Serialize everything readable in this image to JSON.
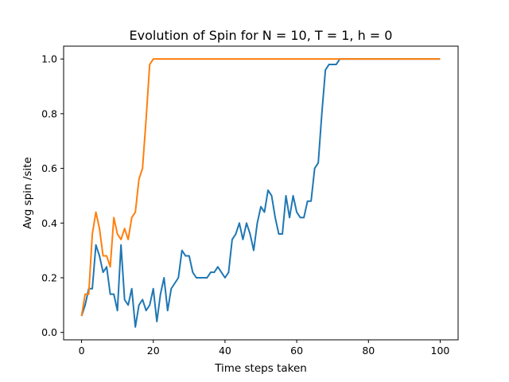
{
  "chart_data": {
    "type": "line",
    "title": "Evolution of Spin for N = 10, T = 1, h = 0",
    "xlabel": "Time steps taken",
    "ylabel": "Avg spin /site",
    "xlim": [
      -5,
      105
    ],
    "ylim": [
      -0.027,
      1.047
    ],
    "xticks": [
      0,
      20,
      40,
      60,
      80,
      100
    ],
    "yticks": [
      0.0,
      0.2,
      0.4,
      0.6,
      0.8,
      1.0
    ],
    "xtick_labels": [
      "0",
      "20",
      "40",
      "60",
      "80",
      "100"
    ],
    "ytick_labels": [
      "0.0",
      "0.2",
      "0.4",
      "0.6",
      "0.8",
      "1.0"
    ],
    "grid": false,
    "legend": "none",
    "series": [
      {
        "color": "#1f77b4",
        "x": [
          0,
          1,
          2,
          3,
          4,
          5,
          6,
          7,
          8,
          9,
          10,
          11,
          12,
          13,
          14,
          15,
          16,
          17,
          18,
          19,
          20,
          21,
          22,
          23,
          24,
          25,
          26,
          27,
          28,
          29,
          30,
          31,
          32,
          33,
          34,
          35,
          36,
          37,
          38,
          39,
          40,
          41,
          42,
          43,
          44,
          45,
          46,
          47,
          48,
          49,
          50,
          51,
          52,
          53,
          54,
          55,
          56,
          57,
          58,
          59,
          60,
          61,
          62,
          63,
          64,
          65,
          66,
          67,
          68,
          69,
          70,
          71,
          72,
          73,
          74,
          75,
          76,
          77,
          78,
          79,
          80,
          81,
          82,
          83,
          84,
          85,
          86,
          87,
          88,
          89,
          90,
          91,
          92,
          93,
          94,
          95,
          96,
          97,
          98,
          99,
          100
        ],
        "values": [
          0.06,
          0.1,
          0.16,
          0.16,
          0.32,
          0.28,
          0.22,
          0.24,
          0.14,
          0.14,
          0.08,
          0.32,
          0.12,
          0.1,
          0.16,
          0.02,
          0.1,
          0.12,
          0.08,
          0.1,
          0.16,
          0.04,
          0.14,
          0.2,
          0.08,
          0.16,
          0.18,
          0.2,
          0.3,
          0.28,
          0.28,
          0.22,
          0.2,
          0.2,
          0.2,
          0.2,
          0.22,
          0.22,
          0.24,
          0.22,
          0.2,
          0.22,
          0.34,
          0.36,
          0.4,
          0.34,
          0.4,
          0.36,
          0.3,
          0.4,
          0.46,
          0.44,
          0.52,
          0.5,
          0.42,
          0.36,
          0.36,
          0.5,
          0.42,
          0.5,
          0.44,
          0.42,
          0.42,
          0.48,
          0.48,
          0.6,
          0.62,
          0.8,
          0.96,
          0.98,
          0.98,
          0.98,
          1.0,
          1.0,
          1.0,
          1.0,
          1.0,
          1.0,
          1.0,
          1.0,
          1.0,
          1.0,
          1.0,
          1.0,
          1.0,
          1.0,
          1.0,
          1.0,
          1.0,
          1.0,
          1.0,
          1.0,
          1.0,
          1.0,
          1.0,
          1.0,
          1.0,
          1.0,
          1.0,
          1.0,
          1.0
        ]
      },
      {
        "color": "#ff7f0e",
        "x": [
          0,
          1,
          2,
          3,
          4,
          5,
          6,
          7,
          8,
          9,
          10,
          11,
          12,
          13,
          14,
          15,
          16,
          17,
          18,
          19,
          20,
          21,
          22,
          23,
          24,
          25,
          26,
          27,
          28,
          29,
          30,
          31,
          32,
          33,
          34,
          35,
          36,
          37,
          38,
          39,
          40,
          41,
          42,
          43,
          44,
          45,
          46,
          47,
          48,
          49,
          50,
          51,
          52,
          53,
          54,
          55,
          56,
          57,
          58,
          59,
          60,
          61,
          62,
          63,
          64,
          65,
          66,
          67,
          68,
          69,
          70,
          71,
          72,
          73,
          74,
          75,
          76,
          77,
          78,
          79,
          80,
          81,
          82,
          83,
          84,
          85,
          86,
          87,
          88,
          89,
          90,
          91,
          92,
          93,
          94,
          95,
          96,
          97,
          98,
          99,
          100
        ],
        "values": [
          0.06,
          0.14,
          0.14,
          0.36,
          0.44,
          0.38,
          0.28,
          0.28,
          0.24,
          0.42,
          0.36,
          0.34,
          0.38,
          0.34,
          0.42,
          0.44,
          0.56,
          0.6,
          0.78,
          0.98,
          1.0,
          1.0,
          1.0,
          1.0,
          1.0,
          1.0,
          1.0,
          1.0,
          1.0,
          1.0,
          1.0,
          1.0,
          1.0,
          1.0,
          1.0,
          1.0,
          1.0,
          1.0,
          1.0,
          1.0,
          1.0,
          1.0,
          1.0,
          1.0,
          1.0,
          1.0,
          1.0,
          1.0,
          1.0,
          1.0,
          1.0,
          1.0,
          1.0,
          1.0,
          1.0,
          1.0,
          1.0,
          1.0,
          1.0,
          1.0,
          1.0,
          1.0,
          1.0,
          1.0,
          1.0,
          1.0,
          1.0,
          1.0,
          1.0,
          1.0,
          1.0,
          1.0,
          1.0,
          1.0,
          1.0,
          1.0,
          1.0,
          1.0,
          1.0,
          1.0,
          1.0,
          1.0,
          1.0,
          1.0,
          1.0,
          1.0,
          1.0,
          1.0,
          1.0,
          1.0,
          1.0,
          1.0,
          1.0,
          1.0,
          1.0,
          1.0,
          1.0,
          1.0,
          1.0,
          1.0,
          1.0
        ]
      }
    ]
  }
}
